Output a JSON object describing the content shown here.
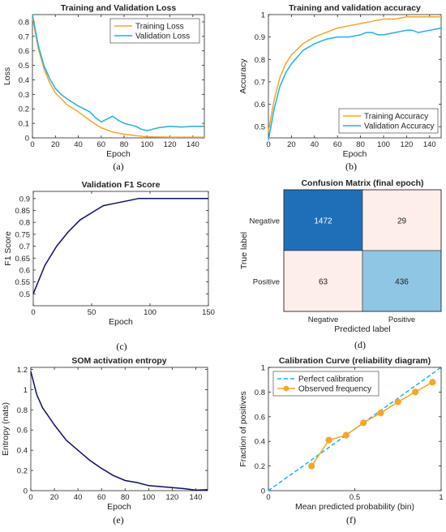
{
  "panels": [
    {
      "id": "a",
      "caption": "(a)",
      "type": "line",
      "title": "Training and Validation Loss",
      "xlabel": "Epoch",
      "ylabel": "Loss",
      "xlim": [
        0,
        150
      ],
      "ylim": [
        0,
        0.85
      ],
      "xticks": [
        0,
        20,
        40,
        60,
        80,
        100,
        120,
        140
      ],
      "yticks": [
        0,
        0.1,
        0.2,
        0.3,
        0.4,
        0.5,
        0.6,
        0.7,
        0.8
      ],
      "ytick_labels": [
        "0",
        "0.1",
        "0.2",
        "0.3",
        "0.4",
        "0.5",
        "0.6",
        "0.7",
        "0.8"
      ],
      "legend": "top-right",
      "grid": false,
      "series": [
        {
          "name": "Training Loss",
          "color": "#f5a623",
          "x": [
            0,
            5,
            10,
            15,
            20,
            30,
            40,
            50,
            60,
            70,
            80,
            90,
            100,
            120,
            150
          ],
          "y": [
            0.83,
            0.62,
            0.48,
            0.38,
            0.31,
            0.23,
            0.18,
            0.12,
            0.07,
            0.04,
            0.025,
            0.015,
            0.008,
            0.005,
            0.005
          ]
        },
        {
          "name": "Validation Loss",
          "color": "#1ab2e8",
          "x": [
            0,
            5,
            10,
            15,
            20,
            25,
            30,
            40,
            50,
            55,
            60,
            65,
            70,
            75,
            80,
            90,
            95,
            100,
            105,
            110,
            120,
            130,
            140,
            150
          ],
          "y": [
            0.85,
            0.64,
            0.5,
            0.41,
            0.34,
            0.3,
            0.27,
            0.22,
            0.18,
            0.14,
            0.11,
            0.13,
            0.15,
            0.12,
            0.1,
            0.08,
            0.06,
            0.05,
            0.06,
            0.07,
            0.08,
            0.075,
            0.08,
            0.08
          ]
        }
      ]
    },
    {
      "id": "b",
      "caption": "(b)",
      "type": "line",
      "title": "Training and validation accuracy",
      "xlabel": "Epoch",
      "ylabel": "Accuracy",
      "xlim": [
        0,
        150
      ],
      "ylim": [
        0.45,
        1.0
      ],
      "xticks": [
        0,
        20,
        40,
        60,
        80,
        100,
        120,
        140
      ],
      "yticks": [
        0.5,
        0.6,
        0.7,
        0.8,
        0.9,
        1.0
      ],
      "ytick_labels": [
        "0.5",
        "0.6",
        "0.7",
        "0.8",
        "0.9",
        "1"
      ],
      "legend": "bottom-right",
      "grid": false,
      "series": [
        {
          "name": "Training Accuracy",
          "color": "#f5a623",
          "x": [
            0,
            5,
            10,
            15,
            20,
            30,
            40,
            50,
            60,
            70,
            80,
            90,
            100,
            110,
            115,
            120,
            130,
            150
          ],
          "y": [
            0.48,
            0.62,
            0.72,
            0.78,
            0.82,
            0.87,
            0.9,
            0.92,
            0.94,
            0.95,
            0.96,
            0.97,
            0.98,
            0.98,
            0.985,
            0.99,
            0.99,
            0.99
          ]
        },
        {
          "name": "Validation Accuracy",
          "color": "#1ab2e8",
          "x": [
            0,
            5,
            10,
            15,
            20,
            30,
            40,
            50,
            60,
            70,
            80,
            85,
            90,
            95,
            100,
            110,
            120,
            125,
            130,
            140,
            150
          ],
          "y": [
            0.44,
            0.58,
            0.68,
            0.74,
            0.78,
            0.84,
            0.87,
            0.89,
            0.9,
            0.9,
            0.91,
            0.92,
            0.92,
            0.91,
            0.91,
            0.92,
            0.93,
            0.93,
            0.92,
            0.93,
            0.94
          ]
        }
      ]
    },
    {
      "id": "c",
      "caption": "(c)",
      "type": "line",
      "title": "Validation F1 Score",
      "xlabel": "Epoch",
      "ylabel": "F1 Score",
      "xlim": [
        0,
        150
      ],
      "ylim": [
        0.45,
        0.93
      ],
      "xticks": [
        0,
        50,
        100,
        150
      ],
      "yticks": [
        0.5,
        0.55,
        0.6,
        0.65,
        0.7,
        0.75,
        0.8,
        0.85,
        0.9
      ],
      "ytick_labels": [
        "0.5",
        "0.55",
        "0.6",
        "0.65",
        "0.7",
        "0.75",
        "0.8",
        "0.85",
        "0.9"
      ],
      "legend": "none",
      "grid": false,
      "series": [
        {
          "name": "",
          "color": "#0d0d6b",
          "x": [
            0,
            10,
            20,
            30,
            40,
            50,
            60,
            70,
            80,
            90,
            100,
            150
          ],
          "y": [
            0.5,
            0.62,
            0.7,
            0.76,
            0.81,
            0.84,
            0.87,
            0.88,
            0.89,
            0.9,
            0.9,
            0.9
          ]
        }
      ]
    },
    {
      "id": "d",
      "caption": "(d)",
      "type": "heatmap",
      "title": "Confusion Matrix (final epoch)",
      "xlabel": "Predicted label",
      "ylabel": "True label",
      "rows": [
        "Negative",
        "Positive"
      ],
      "cols": [
        "Negative",
        "Positive"
      ],
      "values": [
        [
          1472,
          29
        ],
        [
          63,
          436
        ]
      ],
      "colors": [
        [
          "#1f6fb8",
          "#fdeeea"
        ],
        [
          "#fdeeea",
          "#8fc6e4"
        ]
      ],
      "text_colors": [
        [
          "#ffffff",
          "#222222"
        ],
        [
          "#222222",
          "#222222"
        ]
      ]
    },
    {
      "id": "e",
      "caption": "(e)",
      "type": "line",
      "title": "SOM activation entropy",
      "xlabel": "Epoch",
      "ylabel": "Entropy (nats)",
      "xlim": [
        0,
        150
      ],
      "ylim": [
        0,
        1.22
      ],
      "xticks": [
        0,
        20,
        40,
        60,
        80,
        100,
        120,
        140
      ],
      "yticks": [
        0,
        0.2,
        0.4,
        0.6,
        0.8,
        1.0,
        1.2
      ],
      "ytick_labels": [
        "0",
        "0.2",
        "0.4",
        "0.6",
        "0.8",
        "1",
        "1.2"
      ],
      "legend": "none",
      "grid": false,
      "series": [
        {
          "name": "",
          "color": "#0d0d6b",
          "x": [
            0,
            5,
            10,
            20,
            30,
            40,
            50,
            60,
            70,
            80,
            90,
            100,
            110,
            120,
            130,
            140,
            150
          ],
          "y": [
            1.18,
            0.95,
            0.82,
            0.65,
            0.5,
            0.4,
            0.3,
            0.22,
            0.15,
            0.1,
            0.08,
            0.05,
            0.04,
            0.03,
            0.02,
            0.005,
            0.01
          ]
        }
      ]
    },
    {
      "id": "f",
      "caption": "(f)",
      "type": "line",
      "title": "Calibration Curve (reliability diagram)",
      "xlabel": "Mean predicted probability (bin)",
      "ylabel": "Fraction of positives",
      "xlim": [
        0,
        1
      ],
      "ylim": [
        0,
        1
      ],
      "xticks": [
        0,
        0.5,
        1
      ],
      "xtick_labels": [
        "0",
        "0.5",
        "1"
      ],
      "yticks": [
        0,
        0.2,
        0.4,
        0.6,
        0.8,
        1.0
      ],
      "ytick_labels": [
        "0",
        "0.2",
        "0.4",
        "0.6",
        "0.8",
        "1"
      ],
      "legend": "top-left",
      "grid": false,
      "series": [
        {
          "name": "Perfect calibration",
          "color": "#1ab2e8",
          "dashed": true,
          "x": [
            0,
            1
          ],
          "y": [
            0,
            1
          ]
        },
        {
          "name": "Observed frequency",
          "color": "#f5a623",
          "markers": true,
          "x": [
            0.25,
            0.35,
            0.45,
            0.55,
            0.65,
            0.75,
            0.85,
            0.95
          ],
          "y": [
            0.2,
            0.41,
            0.45,
            0.55,
            0.63,
            0.72,
            0.8,
            0.88
          ]
        }
      ]
    }
  ]
}
